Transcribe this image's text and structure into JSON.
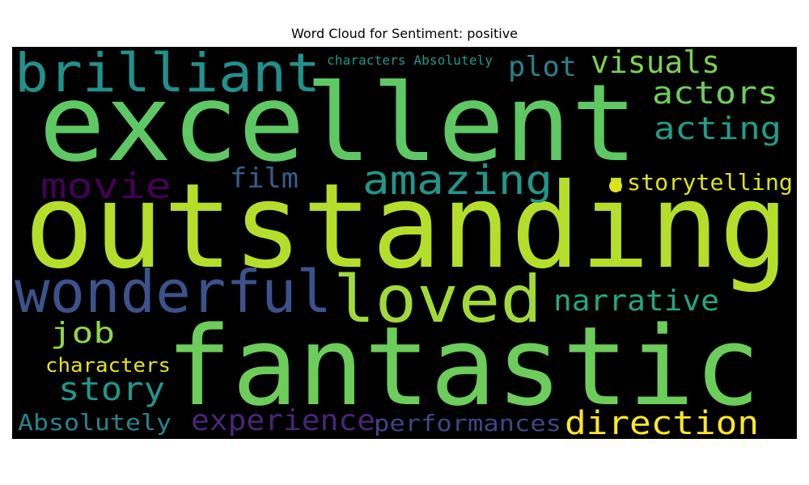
{
  "chart_data": {
    "type": "wordcloud",
    "title": "Word Cloud for Sentiment: positive",
    "background": "#000000",
    "words": [
      {
        "text": "excellent",
        "color": "#5ec962"
      },
      {
        "text": "outstanding",
        "color": "#b5de2b"
      },
      {
        "text": "fantastic",
        "color": "#6ccd5a"
      },
      {
        "text": "brilliant",
        "color": "#21918c"
      },
      {
        "text": "wonderful",
        "color": "#3b528b"
      },
      {
        "text": "loved",
        "color": "#a0da39"
      },
      {
        "text": "amazing",
        "color": "#1f978b"
      },
      {
        "text": "movie",
        "color": "#440154"
      },
      {
        "text": "film",
        "color": "#355f8d"
      },
      {
        "text": "plot",
        "color": "#26828e"
      },
      {
        "text": "visuals",
        "color": "#7ad151"
      },
      {
        "text": "actors",
        "color": "#6ccd5a"
      },
      {
        "text": "acting",
        "color": "#1f9e89"
      },
      {
        "text": "storytelling",
        "color": "#dde318"
      },
      {
        "text": "narrative",
        "color": "#22a884"
      },
      {
        "text": "job",
        "color": "#8fd744"
      },
      {
        "text": "characters",
        "color": "#e5e419"
      },
      {
        "text": "story",
        "color": "#1f988b"
      },
      {
        "text": "Absolutely",
        "color": "#25858e"
      },
      {
        "text": "experience",
        "color": "#482677"
      },
      {
        "text": "performances",
        "color": "#414487"
      },
      {
        "text": "direction",
        "color": "#fde725"
      },
      {
        "text": "characters Absolutely",
        "color": "#1f968b"
      }
    ]
  }
}
